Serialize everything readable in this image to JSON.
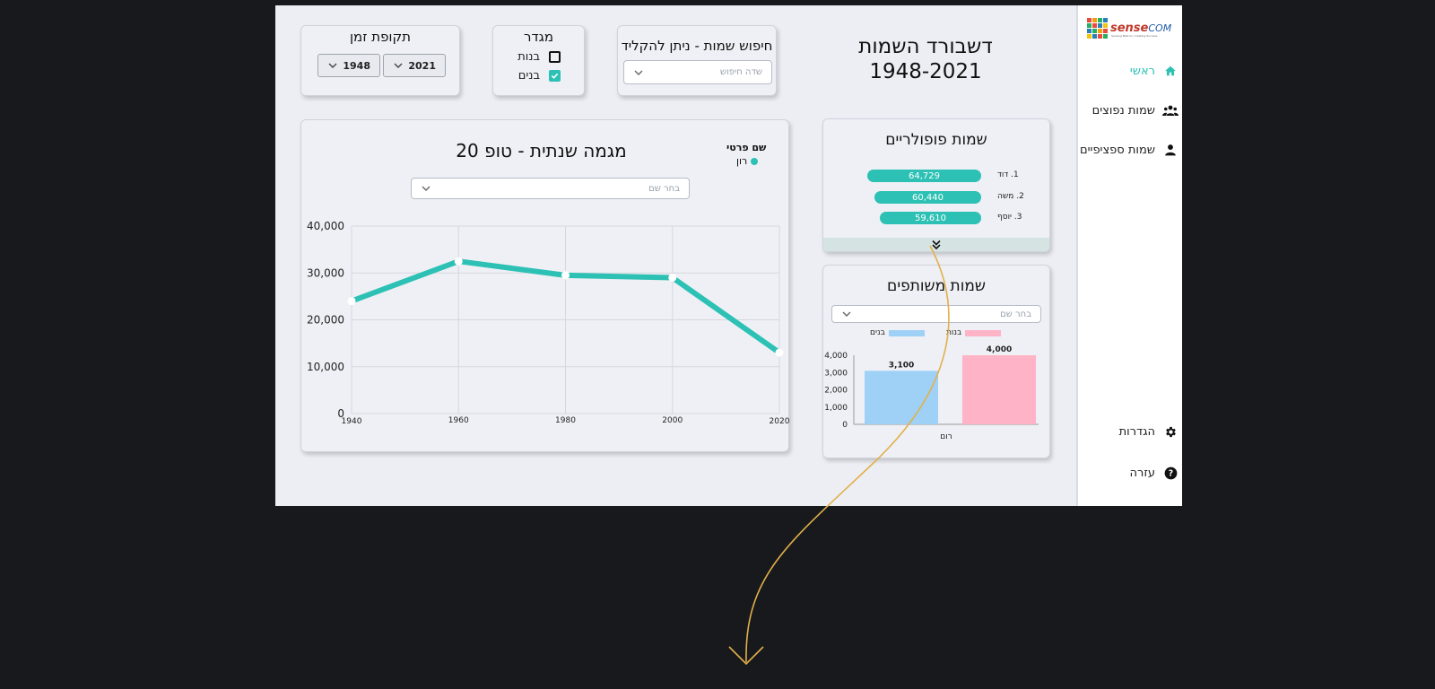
{
  "sidebar": {
    "logo_text": "sense",
    "logo_text_suffix": "COM",
    "logo_tagline": "Sensing Metrics, Creating Success",
    "items": [
      {
        "label": "ראשי",
        "icon": "home-icon",
        "active": true
      },
      {
        "label": "שמות נפוצים",
        "icon": "group-icon",
        "active": false
      },
      {
        "label": "שמות ספציפיים",
        "icon": "person-icon",
        "active": false
      }
    ],
    "bottom_items": [
      {
        "label": "הגדרות",
        "icon": "gear-icon"
      },
      {
        "label": "עזרה",
        "icon": "help-icon"
      }
    ]
  },
  "header": {
    "title_line1": "דשבורד השמות",
    "title_line2": "1948-2021"
  },
  "search": {
    "title": "חיפוש שמות - ניתן להקליד",
    "placeholder": "שדה חיפוש"
  },
  "gender": {
    "title": "מגדר",
    "options": [
      {
        "label": "בנות",
        "checked": false
      },
      {
        "label": "בנים",
        "checked": true
      }
    ]
  },
  "period": {
    "title": "תקופת זמן",
    "from": "1948",
    "to": "2021"
  },
  "popular": {
    "title": "שמות פופולריים",
    "items": [
      {
        "rank_name": "1. דוד",
        "value": 64729,
        "display": "64,729"
      },
      {
        "rank_name": "2. משה",
        "value": 60440,
        "display": "60,440"
      },
      {
        "rank_name": "3. יוסף",
        "value": 59610,
        "display": "59,610"
      }
    ]
  },
  "shared": {
    "title": "שמות משותפים",
    "select_placeholder": "בחר שם",
    "colors": {
      "girls": "#ffb3c6",
      "boys": "#9fd0f5"
    }
  },
  "trend": {
    "title": "מגמה שנתית - טופ 20",
    "select_placeholder": "בחר שם",
    "legend_title": "שם פרטי",
    "accent": "#2cc1b4"
  },
  "chart_data": [
    {
      "type": "line",
      "title": "מגמה שנתית - טופ 20",
      "x": [
        1940,
        1960,
        1980,
        2000,
        2020
      ],
      "x_tick_labels": [
        "1940",
        "1960",
        "1980",
        "2000",
        "2020"
      ],
      "series": [
        {
          "name": "רון",
          "values": [
            24000,
            32500,
            29500,
            29000,
            13000
          ]
        }
      ],
      "y_ticks": [
        0,
        10000,
        20000,
        30000,
        40000
      ],
      "y_tick_labels": [
        "0",
        "10,000",
        "20,000",
        "30,000",
        "40,000"
      ],
      "ylim": [
        0,
        40000
      ],
      "grid": true,
      "legend_title": "שם פרטי",
      "legend_position": "top-right"
    },
    {
      "type": "bar",
      "title": "שמות משותפים",
      "categories": [
        "רום"
      ],
      "series": [
        {
          "name": "בנים",
          "values": [
            3100
          ],
          "labels": [
            "3,100"
          ]
        },
        {
          "name": "בנות",
          "values": [
            4000
          ],
          "labels": [
            "4,000"
          ]
        }
      ],
      "y_ticks": [
        0,
        1000,
        2000,
        3000,
        4000
      ],
      "y_tick_labels": [
        "0",
        "1,000",
        "2,000",
        "3,000",
        "4,000"
      ],
      "ylim": [
        0,
        4000
      ],
      "legend_position": "top"
    }
  ]
}
